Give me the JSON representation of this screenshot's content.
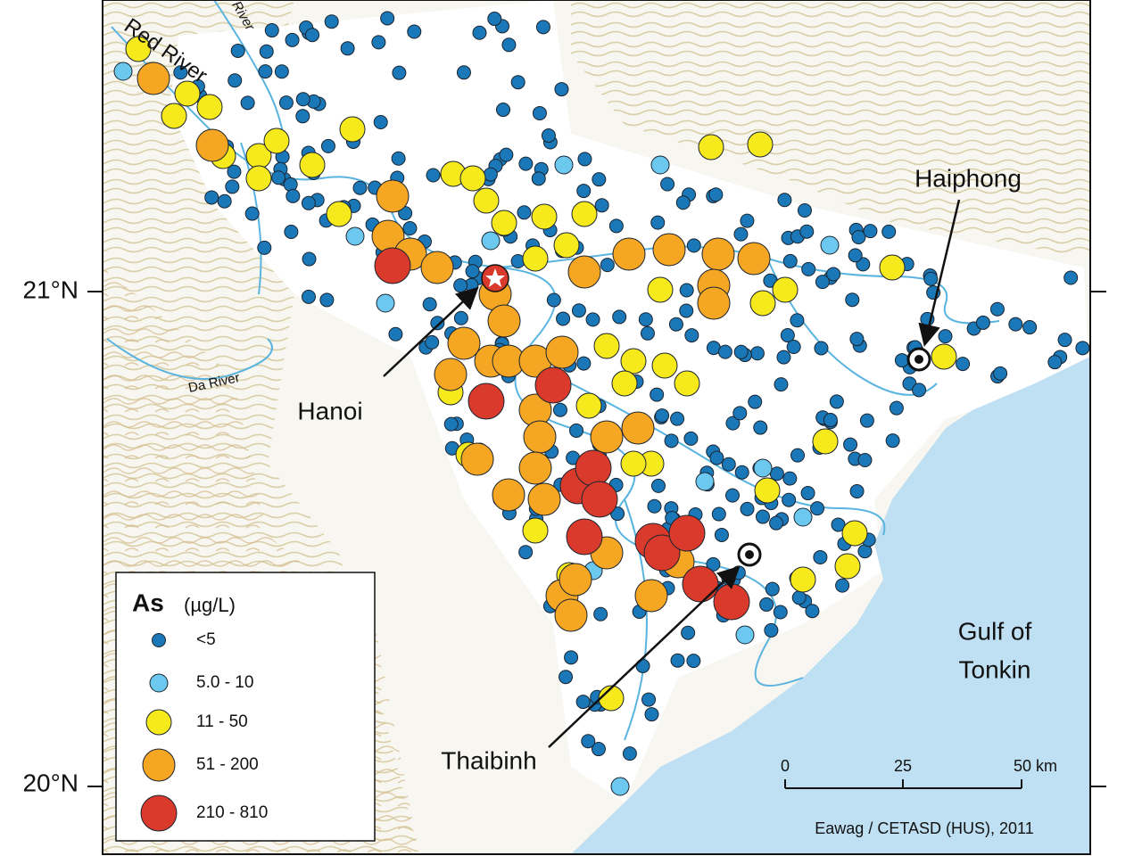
{
  "map": {
    "labels": {
      "red_river": "Red River",
      "river": "River",
      "da_river": "Da River",
      "hanoi": "Hanoi",
      "haiphong": "Haiphong",
      "thaibinh": "Thaibinh",
      "gulf": [
        "Gulf of",
        "Tonkin"
      ]
    },
    "latitude_ticks": [
      "21°N",
      "20°N"
    ],
    "legend": {
      "title": "As",
      "unit": "(µg/L)",
      "classes": [
        "<5",
        "5.0 - 10",
        "11 - 50",
        "51 - 200",
        "210 - 810"
      ]
    },
    "scale_bar": {
      "ticks": [
        "0",
        "25",
        "50 km"
      ]
    },
    "credit": "Eawag / CETASD (HUS), 2011"
  }
}
